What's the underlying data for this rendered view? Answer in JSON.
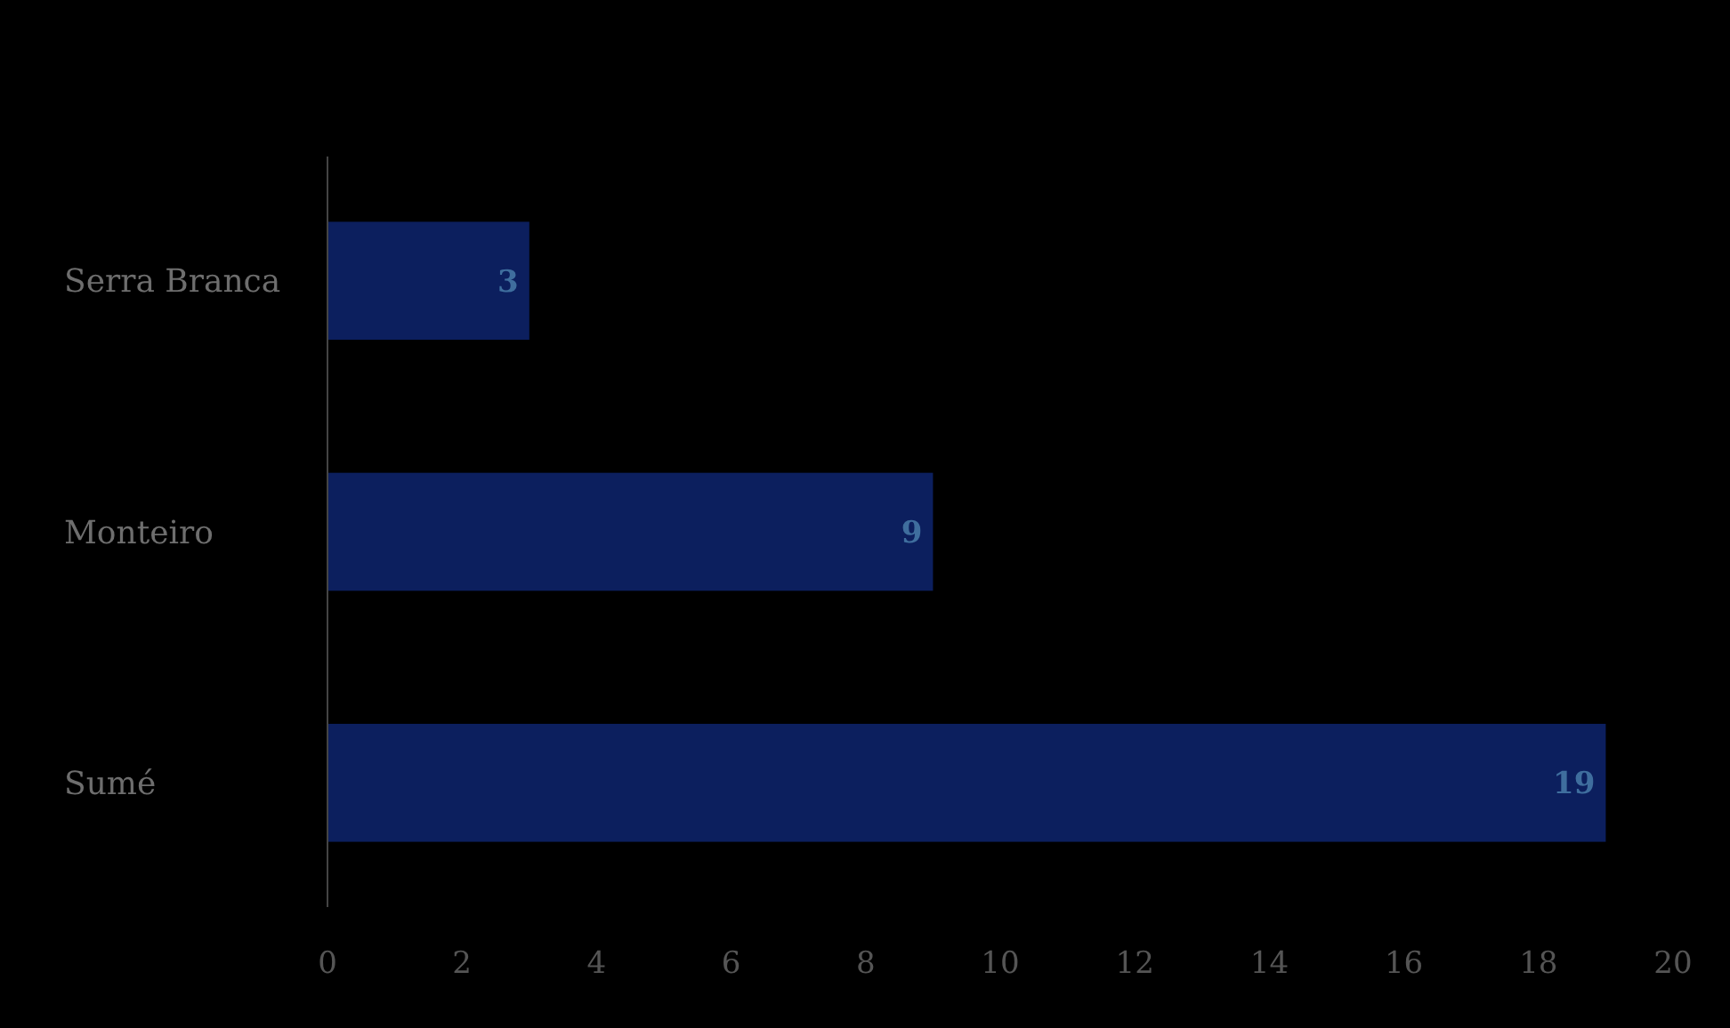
{
  "chart_data": {
    "type": "bar",
    "orientation": "horizontal",
    "categories": [
      "Serra Branca",
      "Monteiro",
      "Sumé"
    ],
    "values": [
      3,
      9,
      19
    ],
    "color": "#0c1f5e",
    "xlim": [
      0,
      20
    ],
    "xticks": [
      0,
      2,
      4,
      6,
      8,
      10,
      12,
      14,
      16,
      18,
      20
    ],
    "data_labels": true
  }
}
